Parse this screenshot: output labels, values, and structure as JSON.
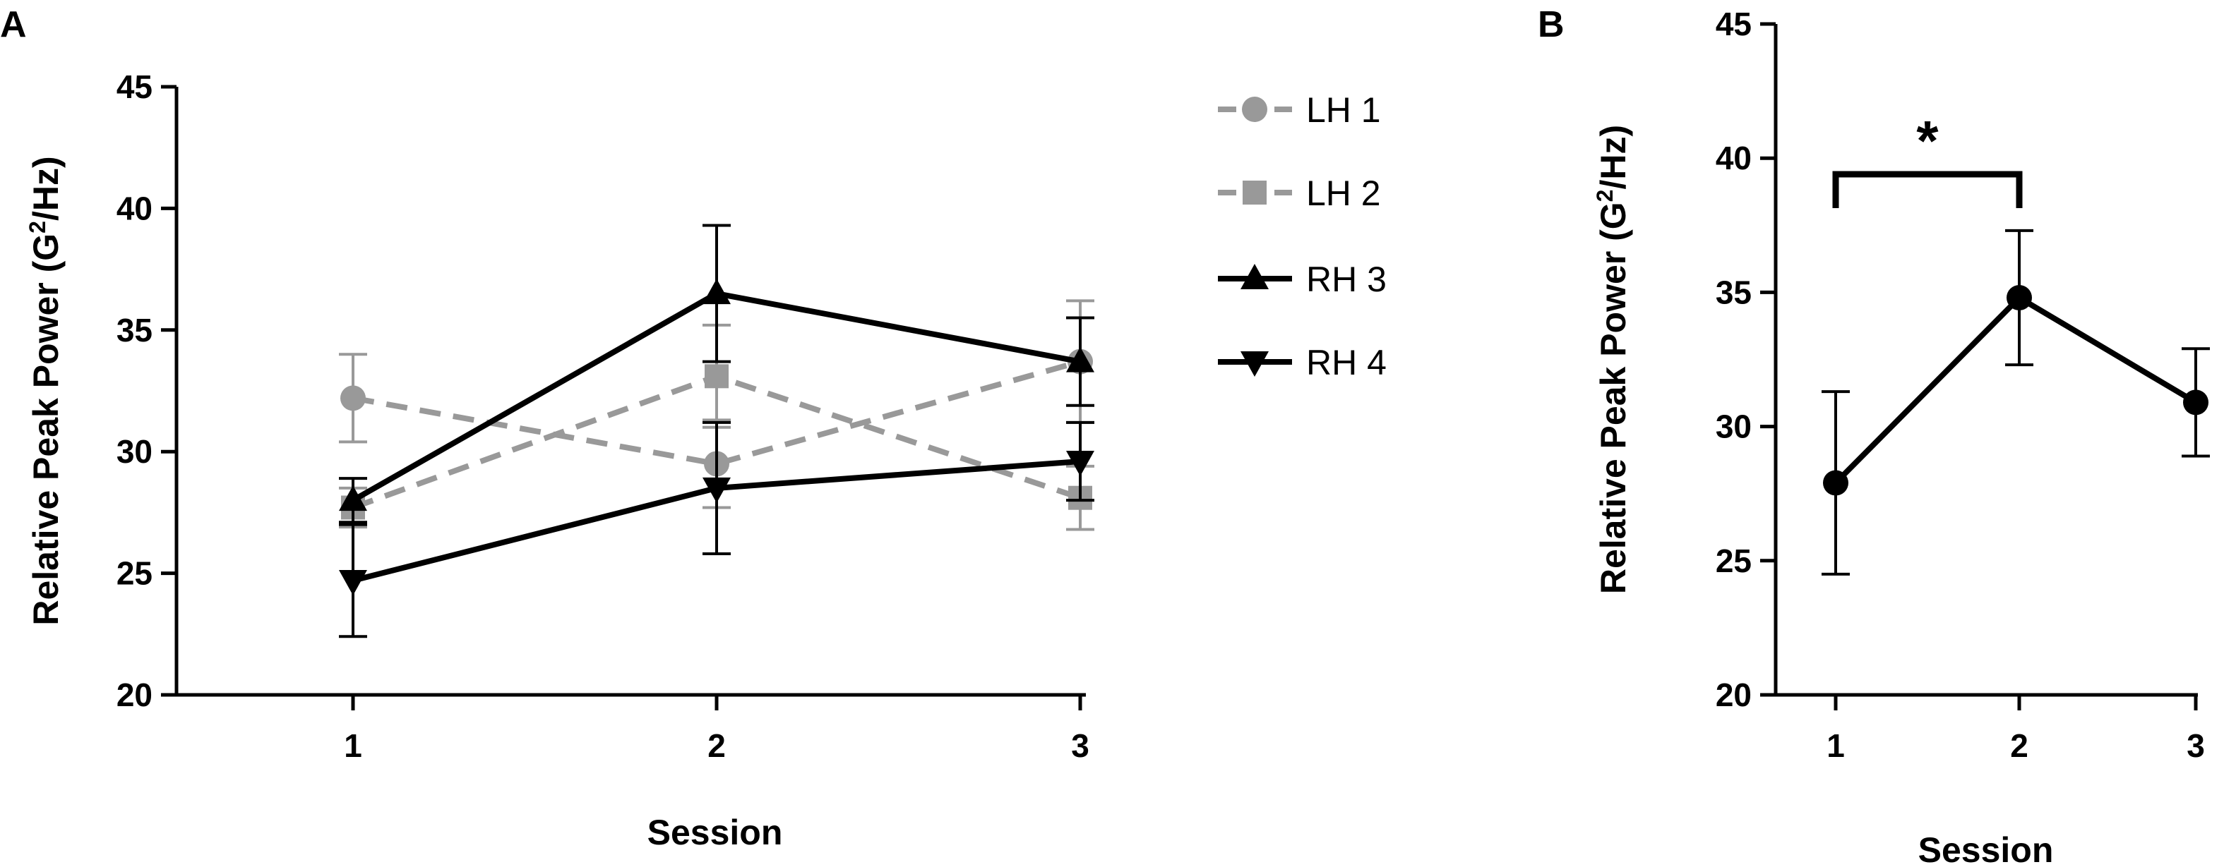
{
  "chart_data": [
    {
      "type": "line",
      "panel_label": "A",
      "xlabel": "Session",
      "ylabel": "Relative Peak Power (G²/Hz)",
      "ylabel_parts": [
        "Relative Peak Power (G",
        "2",
        "/Hz)"
      ],
      "x": [
        1,
        2,
        3
      ],
      "xtick_labels": [
        "1",
        "2",
        "3"
      ],
      "ylim": [
        20,
        45
      ],
      "yticks": [
        20,
        25,
        30,
        35,
        40,
        45
      ],
      "legend_position": "right",
      "series": [
        {
          "name": "LH 1",
          "color": "#999999",
          "dashed": true,
          "marker": "circle",
          "values": [
            32.2,
            29.5,
            33.7
          ],
          "err_low": [
            30.4,
            27.7,
            31.2
          ],
          "err_high": [
            34.0,
            31.3,
            36.2
          ]
        },
        {
          "name": "LH 2",
          "color": "#999999",
          "dashed": true,
          "marker": "square",
          "values": [
            27.7,
            33.1,
            28.1
          ],
          "err_low": [
            26.9,
            31.0,
            26.8
          ],
          "err_high": [
            28.5,
            35.2,
            29.4
          ]
        },
        {
          "name": "RH 3",
          "color": "#000000",
          "dashed": false,
          "marker": "triangle-up",
          "values": [
            28.0,
            36.5,
            33.7
          ],
          "err_low": [
            27.1,
            33.7,
            31.9
          ],
          "err_high": [
            28.9,
            39.3,
            35.5
          ]
        },
        {
          "name": "RH 4",
          "color": "#000000",
          "dashed": false,
          "marker": "triangle-down",
          "values": [
            24.7,
            28.5,
            29.6
          ],
          "err_low": [
            22.4,
            25.8,
            28.0
          ],
          "err_high": [
            27.0,
            31.2,
            31.2
          ]
        }
      ]
    },
    {
      "type": "line",
      "panel_label": "B",
      "xlabel": "Session",
      "ylabel": "Relative Peak Power (G²/Hz)",
      "ylabel_parts": [
        "Relative Peak Power (G",
        "2",
        "/Hz)"
      ],
      "x": [
        1,
        2,
        3
      ],
      "xtick_labels": [
        "1",
        "2",
        "3"
      ],
      "ylim": [
        20,
        45
      ],
      "yticks": [
        20,
        25,
        30,
        35,
        40,
        45
      ],
      "series": [
        {
          "color": "#000000",
          "dashed": false,
          "marker": "circle",
          "values": [
            27.9,
            34.8,
            30.9
          ],
          "err_low": [
            24.5,
            32.3,
            28.9
          ],
          "err_high": [
            31.3,
            37.3,
            32.9
          ]
        }
      ],
      "annotations": [
        {
          "text": "*",
          "x_from": 1,
          "x_to": 2,
          "bracket_y": 39.4
        }
      ]
    }
  ]
}
